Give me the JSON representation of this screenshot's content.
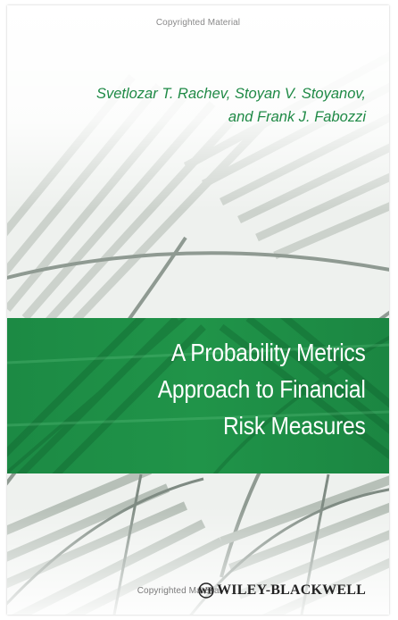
{
  "watermark": {
    "top": "Copyrighted Material",
    "bottom": "Copyrighted Material"
  },
  "book": {
    "authors": [
      "Svetlozar T. Rachev, Stoyan V. Stoyanov,",
      "and Frank J. Fabozzi"
    ],
    "title_lines": [
      "A Probability Metrics",
      "Approach to Financial",
      "Risk Measures"
    ],
    "publisher": "WILEY-BLACKWELL"
  },
  "colors": {
    "accent_green": "#1f8a46",
    "band_green": "#1e8f48",
    "title_text": "#ffffff"
  }
}
